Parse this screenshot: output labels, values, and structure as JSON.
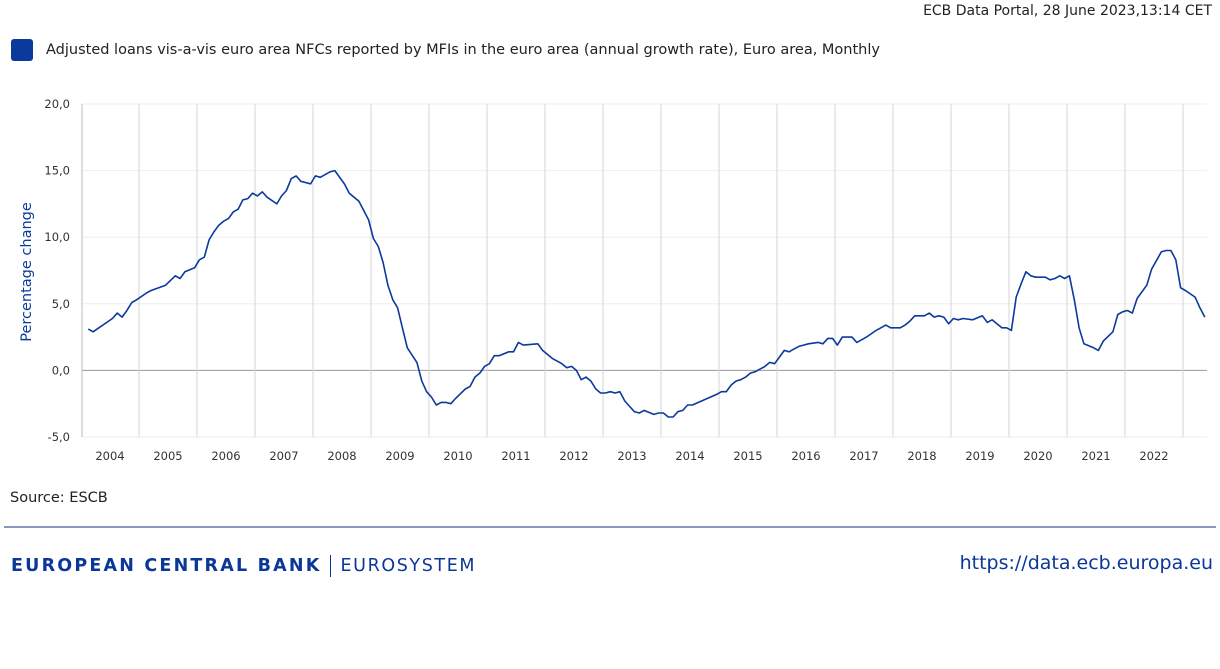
{
  "header": {
    "timestamp": "ECB Data Portal, 28 June 2023,13:14 CET"
  },
  "legend": {
    "label": "Adjusted loans vis-a-vis euro area NFCs reported by MFIs in the euro area (annual growth rate), Euro area, Monthly",
    "color": "#0b3a9c"
  },
  "footer": {
    "source": "Source: ESCB",
    "logo_main": "EUROPEAN CENTRAL BANK",
    "logo_sub": "EUROSYSTEM",
    "url": "https://data.ecb.europa.eu"
  },
  "chart_data": {
    "type": "line",
    "title": "",
    "xlabel": "",
    "ylabel": "Percentage change",
    "ylim": [
      -5,
      20
    ],
    "yticks": [
      "20,0",
      "15,0",
      "10,0",
      "5,0",
      "0,0",
      "-5,0"
    ],
    "ytick_values": [
      20,
      15,
      10,
      5,
      0,
      -5
    ],
    "xticks": [
      "2004",
      "2005",
      "2006",
      "2007",
      "2008",
      "2009",
      "2010",
      "2011",
      "2012",
      "2013",
      "2014",
      "2015",
      "2016",
      "2017",
      "2018",
      "2019",
      "2020",
      "2021",
      "2022"
    ],
    "grid": true,
    "legend_position": "top-left",
    "series": [
      {
        "color": "#0b3a9c",
        "points": [
          [
            "2004-02",
            3.1
          ],
          [
            "2004-03",
            2.9
          ],
          [
            "2004-07",
            3.9
          ],
          [
            "2004-08",
            4.3
          ],
          [
            "2004-09",
            4.0
          ],
          [
            "2004-10",
            4.5
          ],
          [
            "2004-11",
            5.1
          ],
          [
            "2004-12",
            5.3
          ],
          [
            "2005-02",
            5.8
          ],
          [
            "2005-03",
            6.0
          ],
          [
            "2005-06",
            6.4
          ],
          [
            "2005-08",
            7.1
          ],
          [
            "2005-09",
            6.9
          ],
          [
            "2005-10",
            7.4
          ],
          [
            "2005-12",
            7.7
          ],
          [
            "2006-01",
            8.3
          ],
          [
            "2006-02",
            8.5
          ],
          [
            "2006-03",
            9.8
          ],
          [
            "2006-04",
            10.4
          ],
          [
            "2006-05",
            10.9
          ],
          [
            "2006-06",
            11.2
          ],
          [
            "2006-07",
            11.4
          ],
          [
            "2006-08",
            11.9
          ],
          [
            "2006-09",
            12.1
          ],
          [
            "2006-10",
            12.8
          ],
          [
            "2006-11",
            12.9
          ],
          [
            "2006-12",
            13.3
          ],
          [
            "2007-01",
            13.1
          ],
          [
            "2007-02",
            13.4
          ],
          [
            "2007-03",
            13.0
          ],
          [
            "2007-05",
            12.5
          ],
          [
            "2007-06",
            13.1
          ],
          [
            "2007-07",
            13.5
          ],
          [
            "2007-08",
            14.4
          ],
          [
            "2007-09",
            14.6
          ],
          [
            "2007-10",
            14.2
          ],
          [
            "2007-12",
            14.0
          ],
          [
            "2008-01",
            14.6
          ],
          [
            "2008-02",
            14.5
          ],
          [
            "2008-04",
            14.9
          ],
          [
            "2008-05",
            15.0
          ],
          [
            "2008-07",
            14.0
          ],
          [
            "2008-08",
            13.3
          ],
          [
            "2008-09",
            13.0
          ],
          [
            "2008-10",
            12.7
          ],
          [
            "2008-11",
            12.0
          ],
          [
            "2008-12",
            11.3
          ],
          [
            "2009-01",
            9.9
          ],
          [
            "2009-02",
            9.3
          ],
          [
            "2009-03",
            8.1
          ],
          [
            "2009-04",
            6.4
          ],
          [
            "2009-05",
            5.3
          ],
          [
            "2009-06",
            4.7
          ],
          [
            "2009-07",
            3.2
          ],
          [
            "2009-08",
            1.7
          ],
          [
            "2009-10",
            0.6
          ],
          [
            "2009-11",
            -0.8
          ],
          [
            "2009-12",
            -1.6
          ],
          [
            "2010-01",
            -2.0
          ],
          [
            "2010-02",
            -2.6
          ],
          [
            "2010-03",
            -2.4
          ],
          [
            "2010-04",
            -2.4
          ],
          [
            "2010-05",
            -2.5
          ],
          [
            "2010-06",
            -2.1
          ],
          [
            "2010-08",
            -1.4
          ],
          [
            "2010-09",
            -1.2
          ],
          [
            "2010-10",
            -0.5
          ],
          [
            "2010-11",
            -0.2
          ],
          [
            "2010-12",
            0.3
          ],
          [
            "2011-01",
            0.5
          ],
          [
            "2011-02",
            1.1
          ],
          [
            "2011-03",
            1.1
          ],
          [
            "2011-05",
            1.4
          ],
          [
            "2011-06",
            1.4
          ],
          [
            "2011-07",
            2.1
          ],
          [
            "2011-08",
            1.9
          ],
          [
            "2011-11",
            2.0
          ],
          [
            "2011-12",
            1.5
          ],
          [
            "2012-02",
            0.9
          ],
          [
            "2012-04",
            0.5
          ],
          [
            "2012-05",
            0.2
          ],
          [
            "2012-06",
            0.3
          ],
          [
            "2012-07",
            0.0
          ],
          [
            "2012-08",
            -0.7
          ],
          [
            "2012-09",
            -0.5
          ],
          [
            "2012-10",
            -0.8
          ],
          [
            "2012-11",
            -1.4
          ],
          [
            "2012-12",
            -1.7
          ],
          [
            "2013-01",
            -1.7
          ],
          [
            "2013-02",
            -1.6
          ],
          [
            "2013-03",
            -1.7
          ],
          [
            "2013-04",
            -1.6
          ],
          [
            "2013-05",
            -2.3
          ],
          [
            "2013-06",
            -2.7
          ],
          [
            "2013-07",
            -3.1
          ],
          [
            "2013-08",
            -3.2
          ],
          [
            "2013-09",
            -3.0
          ],
          [
            "2013-11",
            -3.3
          ],
          [
            "2013-12",
            -3.2
          ],
          [
            "2014-01",
            -3.2
          ],
          [
            "2014-02",
            -3.5
          ],
          [
            "2014-03",
            -3.5
          ],
          [
            "2014-04",
            -3.1
          ],
          [
            "2014-05",
            -3.0
          ],
          [
            "2014-06",
            -2.6
          ],
          [
            "2014-07",
            -2.6
          ],
          [
            "2014-12",
            -1.8
          ],
          [
            "2015-01",
            -1.6
          ],
          [
            "2015-02",
            -1.6
          ],
          [
            "2015-03",
            -1.1
          ],
          [
            "2015-04",
            -0.8
          ],
          [
            "2015-05",
            -0.7
          ],
          [
            "2015-06",
            -0.5
          ],
          [
            "2015-07",
            -0.2
          ],
          [
            "2015-08",
            -0.1
          ],
          [
            "2015-09",
            0.1
          ],
          [
            "2015-10",
            0.3
          ],
          [
            "2015-11",
            0.6
          ],
          [
            "2015-12",
            0.5
          ],
          [
            "2016-01",
            1.0
          ],
          [
            "2016-02",
            1.5
          ],
          [
            "2016-03",
            1.4
          ],
          [
            "2016-04",
            1.6
          ],
          [
            "2016-05",
            1.8
          ],
          [
            "2016-06",
            1.9
          ],
          [
            "2016-07",
            2.0
          ],
          [
            "2016-09",
            2.1
          ],
          [
            "2016-10",
            2.0
          ],
          [
            "2016-11",
            2.4
          ],
          [
            "2016-12",
            2.4
          ],
          [
            "2017-01",
            1.9
          ],
          [
            "2017-02",
            2.5
          ],
          [
            "2017-04",
            2.5
          ],
          [
            "2017-05",
            2.1
          ],
          [
            "2017-06",
            2.3
          ],
          [
            "2017-07",
            2.5
          ],
          [
            "2017-09",
            3.0
          ],
          [
            "2017-10",
            3.2
          ],
          [
            "2017-11",
            3.4
          ],
          [
            "2017-12",
            3.2
          ],
          [
            "2018-02",
            3.2
          ],
          [
            "2018-03",
            3.4
          ],
          [
            "2018-04",
            3.7
          ],
          [
            "2018-05",
            4.1
          ],
          [
            "2018-07",
            4.1
          ],
          [
            "2018-08",
            4.3
          ],
          [
            "2018-09",
            4.0
          ],
          [
            "2018-10",
            4.1
          ],
          [
            "2018-11",
            4.0
          ],
          [
            "2018-12",
            3.5
          ],
          [
            "2019-01",
            3.9
          ],
          [
            "2019-02",
            3.8
          ],
          [
            "2019-03",
            3.9
          ],
          [
            "2019-05",
            3.8
          ],
          [
            "2019-07",
            4.1
          ],
          [
            "2019-08",
            3.6
          ],
          [
            "2019-09",
            3.8
          ],
          [
            "2019-10",
            3.5
          ],
          [
            "2019-11",
            3.2
          ],
          [
            "2019-12",
            3.2
          ],
          [
            "2020-01",
            3.0
          ],
          [
            "2020-02",
            5.5
          ],
          [
            "2020-03",
            6.5
          ],
          [
            "2020-04",
            7.4
          ],
          [
            "2020-05",
            7.1
          ],
          [
            "2020-06",
            7.0
          ],
          [
            "2020-08",
            7.0
          ],
          [
            "2020-09",
            6.8
          ],
          [
            "2020-10",
            6.9
          ],
          [
            "2020-11",
            7.1
          ],
          [
            "2020-12",
            6.9
          ],
          [
            "2021-01",
            7.1
          ],
          [
            "2021-02",
            5.3
          ],
          [
            "2021-03",
            3.2
          ],
          [
            "2021-04",
            2.0
          ],
          [
            "2021-06",
            1.7
          ],
          [
            "2021-07",
            1.5
          ],
          [
            "2021-08",
            2.2
          ],
          [
            "2021-10",
            2.9
          ],
          [
            "2021-11",
            4.2
          ],
          [
            "2021-12",
            4.4
          ],
          [
            "2022-01",
            4.5
          ],
          [
            "2022-02",
            4.3
          ],
          [
            "2022-03",
            5.4
          ],
          [
            "2022-05",
            6.4
          ],
          [
            "2022-06",
            7.6
          ],
          [
            "2022-08",
            8.9
          ],
          [
            "2022-09",
            9.0
          ],
          [
            "2022-10",
            9.0
          ],
          [
            "2022-11",
            8.3
          ],
          [
            "2022-12",
            6.2
          ],
          [
            "2023-01",
            6.0
          ],
          [
            "2023-03",
            5.5
          ],
          [
            "2023-04",
            4.7
          ],
          [
            "2023-05",
            4.0
          ]
        ]
      }
    ]
  }
}
